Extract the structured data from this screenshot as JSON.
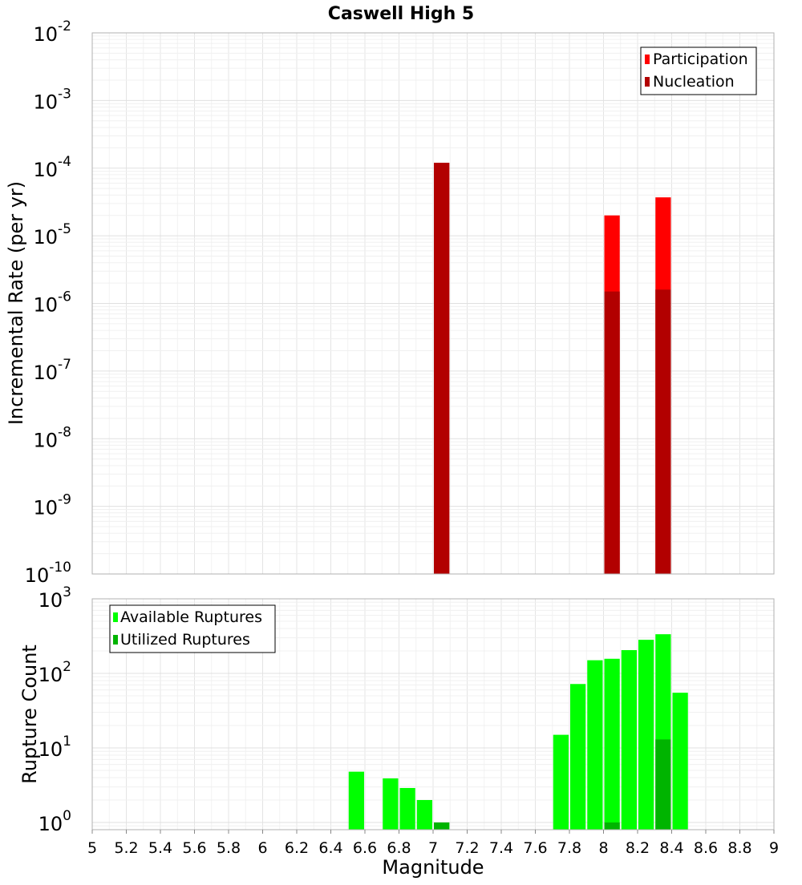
{
  "title": "Caswell High 5",
  "chart_data": [
    {
      "type": "bar",
      "title": "Caswell High 5",
      "xlabel": "",
      "ylabel": "Incremental Rate (per yr)",
      "xlim": [
        5,
        9
      ],
      "ylim": [
        1e-10,
        0.01
      ],
      "yscale": "log",
      "bin_width": 0.1,
      "grid": true,
      "legend_position": "top-right",
      "y_tick_exponents": [
        "-2",
        "-3",
        "-4",
        "-5",
        "-6",
        "-7",
        "-8",
        "-9",
        "-10"
      ],
      "y_tick_base": "10",
      "series": [
        {
          "name": "Participation",
          "color": "#ff0000",
          "x": [
            7.05,
            8.05,
            8.35
          ],
          "values": [
            0.00012,
            2e-05,
            3.7e-05
          ]
        },
        {
          "name": "Nucleation",
          "color": "#b20000",
          "x": [
            7.05,
            8.05,
            8.35
          ],
          "values": [
            0.00012,
            1.5e-06,
            1.6e-06
          ]
        }
      ]
    },
    {
      "type": "bar",
      "xlabel": "Magnitude",
      "ylabel": "Rupture Count",
      "xlim": [
        5,
        9
      ],
      "ylim": [
        0.8,
        1000
      ],
      "yscale": "log",
      "bin_width": 0.1,
      "grid": true,
      "legend_position": "top-left",
      "x_ticks": [
        "5",
        "5.2",
        "5.4",
        "5.6",
        "5.8",
        "6",
        "6.2",
        "6.4",
        "6.6",
        "6.8",
        "7",
        "7.2",
        "7.4",
        "7.6",
        "7.8",
        "8",
        "8.2",
        "8.4",
        "8.6",
        "8.8",
        "9"
      ],
      "y_tick_exponents": [
        "3",
        "2",
        "1",
        "0"
      ],
      "y_tick_base": "10",
      "series": [
        {
          "name": "Available Ruptures",
          "color": "#00ff00",
          "x": [
            6.55,
            6.75,
            6.85,
            6.95,
            7.05,
            7.75,
            7.85,
            7.95,
            8.05,
            8.15,
            8.25,
            8.35,
            8.45
          ],
          "values": [
            4.8,
            3.9,
            2.9,
            2.0,
            1.0,
            15,
            72,
            150,
            157,
            205,
            282,
            335,
            55
          ]
        },
        {
          "name": "Utilized Ruptures",
          "color": "#00b400",
          "x": [
            7.05,
            8.05,
            8.35
          ],
          "values": [
            1.0,
            1.0,
            13
          ]
        }
      ]
    }
  ]
}
